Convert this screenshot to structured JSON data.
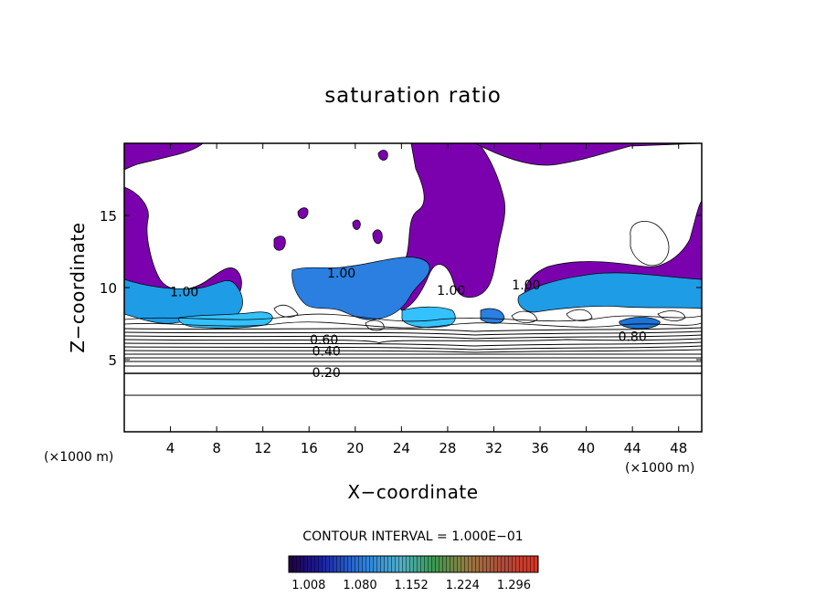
{
  "chart_data": {
    "type": "contour",
    "title": "saturation ratio",
    "xlabel": "X−coordinate",
    "ylabel": "Z−coordinate",
    "x_unit_left": "(×1000 m)",
    "x_unit_right": "(×1000 m)",
    "xlim": [
      0,
      50
    ],
    "ylim": [
      0,
      20
    ],
    "x_ticks": [
      4,
      8,
      12,
      16,
      20,
      24,
      28,
      32,
      36,
      40,
      44,
      48
    ],
    "y_ticks": [
      5,
      10,
      15
    ],
    "contour_interval_text": "CONTOUR INTERVAL = 1.000E−01",
    "contour_levels_labeled": [
      {
        "text": "0.20",
        "x": 17.5,
        "z": 4.1
      },
      {
        "text": "0.40",
        "x": 17.5,
        "z": 5.6
      },
      {
        "text": "0.60",
        "x": 17.3,
        "z": 6.4
      },
      {
        "text": "0.80",
        "x": 44.0,
        "z": 6.6
      },
      {
        "text": "1.00",
        "x": 5.2,
        "z": 9.7
      },
      {
        "text": "1.00",
        "x": 18.8,
        "z": 11.0
      },
      {
        "text": "1.00",
        "x": 28.3,
        "z": 9.8
      },
      {
        "text": "1.00",
        "x": 34.8,
        "z": 10.2
      }
    ],
    "shading": {
      "color_low": "#7a00b0",
      "color_band": "#1e9ce6",
      "colorbar_ticks": [
        "1.008",
        "1.080",
        "1.152",
        "1.224",
        "1.296"
      ],
      "colorbar_range": [
        0.98,
        1.33
      ]
    },
    "grid": false
  }
}
